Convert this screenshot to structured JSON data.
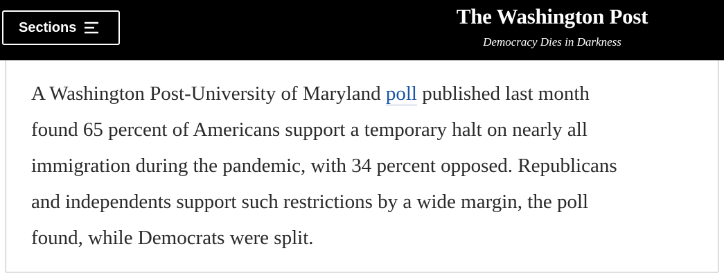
{
  "header": {
    "sections_button": "Sections",
    "logo": "The Washington Post",
    "tagline": "Democracy Dies in Darkness"
  },
  "article": {
    "first_line": {
      "before": "A Washington Post-University of Maryland",
      "link": "poll",
      "after": "published last month"
    },
    "lines": [
      "found 65 percent of Americans support a temporary halt on nearly all",
      "immigration during the pandemic, with 34 percent opposed. Republicans",
      "and independents support such restrictions by a wide margin, the poll",
      "found, while Democrats were split."
    ]
  }
}
